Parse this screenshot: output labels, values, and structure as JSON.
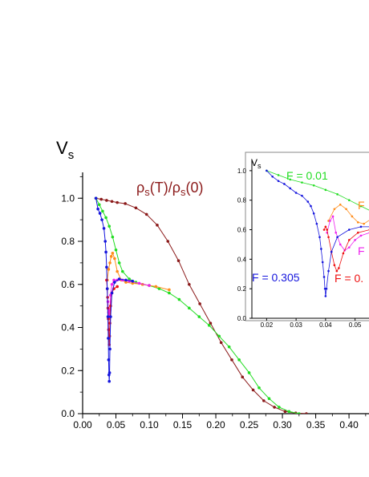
{
  "chart_data": [
    {
      "type": "line",
      "ylabel_main": "V",
      "ylabel_sub": "s",
      "annotation": {
        "rho1": "ρ",
        "s1": "s",
        "mid": "(T)/",
        "rho2": "ρ",
        "s2": "s",
        "end": "(0)"
      },
      "xlim": [
        0.0,
        0.43
      ],
      "ylim": [
        0.0,
        1.12
      ],
      "xticks": [
        "0.00",
        "0.05",
        "0.10",
        "0.15",
        "0.20",
        "0.25",
        "0.30",
        "0.35",
        "0.40"
      ],
      "yticks": [
        "0.0",
        "0.2",
        "0.4",
        "0.6",
        "0.8",
        "1.0"
      ],
      "series": [
        {
          "id": "rho",
          "color": "#8b1a1a",
          "x": [
            0.02,
            0.028,
            0.036,
            0.044,
            0.052,
            0.064,
            0.08,
            0.096,
            0.112,
            0.128,
            0.144,
            0.16,
            0.176,
            0.192,
            0.208,
            0.224,
            0.24,
            0.256,
            0.272,
            0.288,
            0.304,
            0.32,
            0.336
          ],
          "y": [
            1.0,
            0.995,
            0.99,
            0.985,
            0.98,
            0.975,
            0.955,
            0.925,
            0.875,
            0.8,
            0.71,
            0.6,
            0.51,
            0.42,
            0.33,
            0.25,
            0.17,
            0.11,
            0.06,
            0.03,
            0.01,
            0.003,
            0.0
          ]
        },
        {
          "id": "green",
          "color": "#22dd22",
          "x": [
            0.02,
            0.025,
            0.03,
            0.035,
            0.04,
            0.045,
            0.05,
            0.055,
            0.06,
            0.07,
            0.08,
            0.09,
            0.1,
            0.115,
            0.13,
            0.145,
            0.16,
            0.175,
            0.19,
            0.205,
            0.22,
            0.235,
            0.25,
            0.265,
            0.28,
            0.295,
            0.31,
            0.325
          ],
          "y": [
            1.0,
            0.97,
            0.94,
            0.91,
            0.87,
            0.82,
            0.76,
            0.7,
            0.66,
            0.625,
            0.61,
            0.6,
            0.595,
            0.58,
            0.56,
            0.53,
            0.49,
            0.45,
            0.41,
            0.36,
            0.31,
            0.25,
            0.19,
            0.12,
            0.07,
            0.03,
            0.01,
            0.0
          ]
        },
        {
          "id": "orange",
          "color": "#ff8c1a",
          "x": [
            0.037,
            0.039,
            0.041,
            0.043,
            0.045,
            0.048,
            0.052,
            0.058,
            0.065,
            0.075,
            0.09,
            0.11,
            0.13
          ],
          "y": [
            0.62,
            0.67,
            0.7,
            0.73,
            0.745,
            0.72,
            0.66,
            0.62,
            0.61,
            0.605,
            0.6,
            0.59,
            0.575
          ]
        },
        {
          "id": "magenta",
          "color": "#ee22ee",
          "x": [
            0.038,
            0.039,
            0.04,
            0.041,
            0.042,
            0.044,
            0.047,
            0.052,
            0.06,
            0.07,
            0.085,
            0.1
          ],
          "y": [
            0.52,
            0.47,
            0.45,
            0.48,
            0.55,
            0.6,
            0.62,
            0.62,
            0.62,
            0.615,
            0.605,
            0.595
          ]
        },
        {
          "id": "red",
          "color": "#ee1111",
          "x": [
            0.036,
            0.037,
            0.0375,
            0.038,
            0.0385,
            0.039,
            0.0395,
            0.04,
            0.0405,
            0.041,
            0.042,
            0.044,
            0.047,
            0.052
          ],
          "y": [
            0.62,
            0.58,
            0.54,
            0.49,
            0.44,
            0.39,
            0.35,
            0.32,
            0.36,
            0.42,
            0.5,
            0.56,
            0.58,
            0.59
          ]
        },
        {
          "id": "blue",
          "color": "#1515dd",
          "x": [
            0.02,
            0.023,
            0.026,
            0.029,
            0.032,
            0.034,
            0.035,
            0.036,
            0.037,
            0.038,
            0.0385,
            0.039,
            0.0395,
            0.04,
            0.0405,
            0.041,
            0.042,
            0.044,
            0.048,
            0.055,
            0.065,
            0.075
          ],
          "y": [
            1.0,
            0.95,
            0.93,
            0.9,
            0.86,
            0.8,
            0.75,
            0.68,
            0.58,
            0.45,
            0.35,
            0.25,
            0.18,
            0.15,
            0.19,
            0.3,
            0.45,
            0.56,
            0.61,
            0.625,
            0.62,
            0.615
          ]
        }
      ]
    },
    {
      "type": "line",
      "ylabel_main": "V",
      "ylabel_sub": "s",
      "xlim": [
        0.015,
        0.058
      ],
      "ylim": [
        0.0,
        1.07
      ],
      "xticks": [
        "0.02",
        "0.03",
        "0.04",
        "0.05",
        "0.0"
      ],
      "yticks": [
        "0.0",
        "0.2",
        "0.4",
        "0.6",
        "0.8",
        "1.0"
      ],
      "labels": {
        "green": "F = 0.01",
        "blue": "F = 0.305",
        "red": "F = 0.",
        "orange": "F",
        "magenta": "F"
      },
      "series": [
        {
          "id": "green",
          "color": "#22dd22",
          "x": [
            0.02,
            0.024,
            0.028,
            0.032,
            0.036,
            0.04,
            0.044,
            0.048,
            0.052,
            0.056,
            0.06
          ],
          "y": [
            1.0,
            0.97,
            0.94,
            0.92,
            0.9,
            0.87,
            0.84,
            0.8,
            0.76,
            0.72,
            0.68
          ]
        },
        {
          "id": "orange",
          "color": "#ff8c1a",
          "x": [
            0.041,
            0.043,
            0.045,
            0.047,
            0.049,
            0.051,
            0.053,
            0.056,
            0.06
          ],
          "y": [
            0.66,
            0.74,
            0.77,
            0.74,
            0.69,
            0.65,
            0.64,
            0.68,
            0.72
          ]
        },
        {
          "id": "magenta",
          "color": "#ee22ee",
          "x": [
            0.0405,
            0.0415,
            0.0425,
            0.0435,
            0.045,
            0.0465,
            0.048,
            0.05,
            0.052,
            0.055,
            0.058
          ],
          "y": [
            0.58,
            0.66,
            0.69,
            0.58,
            0.5,
            0.46,
            0.48,
            0.53,
            0.56,
            0.58,
            0.59
          ]
        },
        {
          "id": "red",
          "color": "#ee1111",
          "x": [
            0.0395,
            0.04,
            0.0405,
            0.041,
            0.042,
            0.043,
            0.0438,
            0.0445,
            0.046,
            0.048,
            0.051,
            0.055
          ],
          "y": [
            0.6,
            0.62,
            0.6,
            0.55,
            0.45,
            0.36,
            0.32,
            0.34,
            0.44,
            0.53,
            0.58,
            0.6
          ]
        },
        {
          "id": "blue",
          "color": "#1515dd",
          "x": [
            0.02,
            0.022,
            0.024,
            0.026,
            0.028,
            0.03,
            0.032,
            0.034,
            0.035,
            0.036,
            0.037,
            0.038,
            0.0385,
            0.039,
            0.0395,
            0.0398,
            0.04,
            0.0403,
            0.041,
            0.042,
            0.044,
            0.048,
            0.052,
            0.056
          ],
          "y": [
            1.0,
            0.96,
            0.93,
            0.91,
            0.88,
            0.85,
            0.83,
            0.79,
            0.76,
            0.71,
            0.64,
            0.55,
            0.47,
            0.38,
            0.28,
            0.2,
            0.15,
            0.2,
            0.32,
            0.45,
            0.55,
            0.6,
            0.62,
            0.62
          ]
        }
      ]
    }
  ]
}
